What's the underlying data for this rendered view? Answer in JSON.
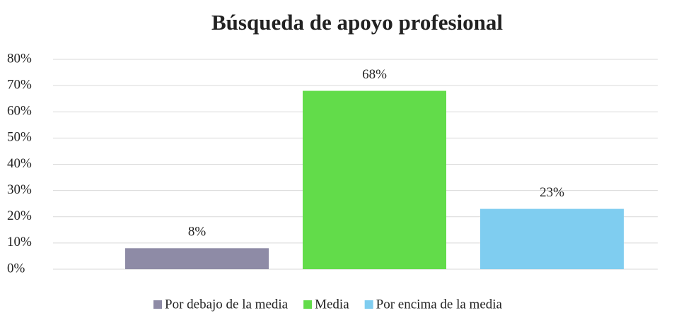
{
  "chart_data": {
    "type": "bar",
    "title": "Búsqueda de apoyo profesional",
    "categories": [
      null
    ],
    "series": [
      {
        "name": "Por debajo de la media",
        "color": "#8e8ba6",
        "values": [
          8
        ],
        "value_labels": [
          "8%"
        ]
      },
      {
        "name": "Media",
        "color": "#62dc4a",
        "values": [
          68
        ],
        "value_labels": [
          "68%"
        ]
      },
      {
        "name": "Por encima de la media",
        "color": "#7fcdf0",
        "values": [
          23
        ],
        "value_labels": [
          "23%"
        ]
      }
    ],
    "ylim": [
      0,
      80
    ],
    "yticks": [
      {
        "value": 0,
        "label": "0%"
      },
      {
        "value": 10,
        "label": "10%"
      },
      {
        "value": 20,
        "label": "20%"
      },
      {
        "value": 30,
        "label": "30%"
      },
      {
        "value": 40,
        "label": "40%"
      },
      {
        "value": 50,
        "label": "50%"
      },
      {
        "value": 60,
        "label": "60%"
      },
      {
        "value": 70,
        "label": "70%"
      },
      {
        "value": 80,
        "label": "80%"
      }
    ],
    "grid": true,
    "legend": "bottom"
  }
}
